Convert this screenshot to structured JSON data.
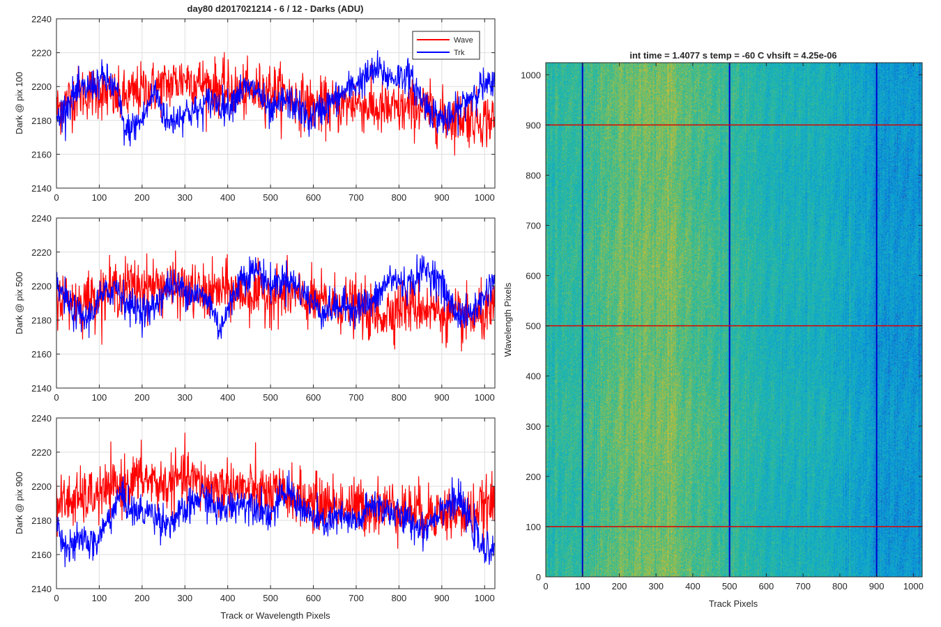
{
  "chart_data": [
    {
      "type": "line",
      "title": "day80 d2017021214 - 6 / 12 - Darks (ADU)",
      "xlabel": "",
      "ylabel": "Dark @ pix 100",
      "xlim": [
        0,
        1024
      ],
      "ylim": [
        2140,
        2240
      ],
      "xticks": [
        0,
        100,
        200,
        300,
        400,
        500,
        600,
        700,
        800,
        900,
        1000
      ],
      "yticks": [
        2140,
        2160,
        2180,
        2200,
        2220,
        2240
      ],
      "grid": true,
      "legend": {
        "placement": "top-right",
        "entries": [
          "Wave",
          "Trk"
        ]
      },
      "series": [
        {
          "name": "Wave",
          "color": "#ff0000",
          "n": 1024,
          "keypoints": [
            [
              0,
              2186
            ],
            [
              50,
              2196
            ],
            [
              100,
              2197
            ],
            [
              150,
              2192
            ],
            [
              200,
              2198
            ],
            [
              250,
              2200
            ],
            [
              300,
              2205
            ],
            [
              350,
              2201
            ],
            [
              400,
              2198
            ],
            [
              450,
              2196
            ],
            [
              500,
              2199
            ],
            [
              550,
              2193
            ],
            [
              600,
              2188
            ],
            [
              650,
              2188
            ],
            [
              700,
              2191
            ],
            [
              750,
              2186
            ],
            [
              800,
              2186
            ],
            [
              850,
              2188
            ],
            [
              900,
              2182
            ],
            [
              950,
              2182
            ],
            [
              1024,
              2180
            ]
          ],
          "noise": 8
        },
        {
          "name": "Trk",
          "color": "#0000ff",
          "n": 1024,
          "keypoints": [
            [
              0,
              2180
            ],
            [
              40,
              2195
            ],
            [
              80,
              2200
            ],
            [
              110,
              2205
            ],
            [
              140,
              2198
            ],
            [
              160,
              2173
            ],
            [
              200,
              2180
            ],
            [
              230,
              2198
            ],
            [
              260,
              2178
            ],
            [
              300,
              2185
            ],
            [
              330,
              2185
            ],
            [
              360,
              2192
            ],
            [
              400,
              2188
            ],
            [
              430,
              2198
            ],
            [
              470,
              2198
            ],
            [
              500,
              2183
            ],
            [
              530,
              2192
            ],
            [
              560,
              2189
            ],
            [
              590,
              2180
            ],
            [
              620,
              2187
            ],
            [
              650,
              2192
            ],
            [
              690,
              2200
            ],
            [
              720,
              2205
            ],
            [
              750,
              2210
            ],
            [
              780,
              2205
            ],
            [
              820,
              2207
            ],
            [
              860,
              2190
            ],
            [
              890,
              2182
            ],
            [
              920,
              2180
            ],
            [
              950,
              2190
            ],
            [
              990,
              2200
            ],
            [
              1024,
              2200
            ]
          ],
          "noise": 5
        }
      ]
    },
    {
      "type": "line",
      "title": "",
      "xlabel": "",
      "ylabel": "Dark @ pix 500",
      "xlim": [
        0,
        1024
      ],
      "ylim": [
        2140,
        2240
      ],
      "xticks": [
        0,
        100,
        200,
        300,
        400,
        500,
        600,
        700,
        800,
        900,
        1000
      ],
      "yticks": [
        2140,
        2160,
        2180,
        2200,
        2220,
        2240
      ],
      "grid": true,
      "series": [
        {
          "name": "Wave",
          "color": "#ff0000",
          "n": 1024,
          "keypoints": [
            [
              0,
              2195
            ],
            [
              50,
              2190
            ],
            [
              100,
              2195
            ],
            [
              150,
              2200
            ],
            [
              200,
              2200
            ],
            [
              250,
              2200
            ],
            [
              300,
              2198
            ],
            [
              350,
              2195
            ],
            [
              400,
              2198
            ],
            [
              450,
              2195
            ],
            [
              500,
              2195
            ],
            [
              550,
              2195
            ],
            [
              600,
              2190
            ],
            [
              650,
              2190
            ],
            [
              700,
              2188
            ],
            [
              750,
              2182
            ],
            [
              800,
              2188
            ],
            [
              850,
              2188
            ],
            [
              900,
              2185
            ],
            [
              950,
              2180
            ],
            [
              1024,
              2185
            ]
          ],
          "noise": 8
        },
        {
          "name": "Trk",
          "color": "#0000ff",
          "n": 1024,
          "keypoints": [
            [
              0,
              2200
            ],
            [
              40,
              2185
            ],
            [
              70,
              2180
            ],
            [
              100,
              2192
            ],
            [
              140,
              2200
            ],
            [
              170,
              2188
            ],
            [
              220,
              2185
            ],
            [
              260,
              2200
            ],
            [
              300,
              2198
            ],
            [
              330,
              2195
            ],
            [
              360,
              2190
            ],
            [
              380,
              2175
            ],
            [
              400,
              2185
            ],
            [
              430,
              2205
            ],
            [
              470,
              2210
            ],
            [
              500,
              2200
            ],
            [
              540,
              2205
            ],
            [
              580,
              2195
            ],
            [
              620,
              2185
            ],
            [
              660,
              2188
            ],
            [
              700,
              2188
            ],
            [
              740,
              2190
            ],
            [
              780,
              2205
            ],
            [
              820,
              2200
            ],
            [
              860,
              2210
            ],
            [
              890,
              2205
            ],
            [
              930,
              2185
            ],
            [
              960,
              2182
            ],
            [
              990,
              2190
            ],
            [
              1024,
              2205
            ]
          ],
          "noise": 5
        }
      ]
    },
    {
      "type": "line",
      "title": "",
      "xlabel": "Track or Wavelength Pixels",
      "ylabel": "Dark @ pix 900",
      "xlim": [
        0,
        1024
      ],
      "ylim": [
        2140,
        2240
      ],
      "xticks": [
        0,
        100,
        200,
        300,
        400,
        500,
        600,
        700,
        800,
        900,
        1000
      ],
      "yticks": [
        2140,
        2160,
        2180,
        2200,
        2220,
        2240
      ],
      "grid": true,
      "series": [
        {
          "name": "Wave",
          "color": "#ff0000",
          "n": 1024,
          "keypoints": [
            [
              0,
              2190
            ],
            [
              50,
              2192
            ],
            [
              100,
              2195
            ],
            [
              150,
              2200
            ],
            [
              200,
              2205
            ],
            [
              250,
              2200
            ],
            [
              300,
              2205
            ],
            [
              350,
              2200
            ],
            [
              400,
              2200
            ],
            [
              450,
              2198
            ],
            [
              500,
              2195
            ],
            [
              550,
              2195
            ],
            [
              600,
              2190
            ],
            [
              650,
              2190
            ],
            [
              700,
              2188
            ],
            [
              750,
              2188
            ],
            [
              800,
              2188
            ],
            [
              850,
              2185
            ],
            [
              900,
              2185
            ],
            [
              950,
              2182
            ],
            [
              1024,
              2190
            ]
          ],
          "noise": 8
        },
        {
          "name": "Trk",
          "color": "#0000ff",
          "n": 1024,
          "keypoints": [
            [
              0,
              2178
            ],
            [
              30,
              2162
            ],
            [
              60,
              2170
            ],
            [
              90,
              2165
            ],
            [
              120,
              2180
            ],
            [
              150,
              2195
            ],
            [
              180,
              2185
            ],
            [
              220,
              2185
            ],
            [
              260,
              2178
            ],
            [
              300,
              2185
            ],
            [
              340,
              2195
            ],
            [
              380,
              2185
            ],
            [
              420,
              2190
            ],
            [
              460,
              2190
            ],
            [
              500,
              2183
            ],
            [
              540,
              2198
            ],
            [
              580,
              2185
            ],
            [
              620,
              2178
            ],
            [
              660,
              2182
            ],
            [
              700,
              2178
            ],
            [
              740,
              2190
            ],
            [
              780,
              2185
            ],
            [
              820,
              2180
            ],
            [
              860,
              2175
            ],
            [
              900,
              2188
            ],
            [
              940,
              2192
            ],
            [
              980,
              2172
            ],
            [
              1000,
              2160
            ],
            [
              1024,
              2168
            ]
          ],
          "noise": 5
        }
      ]
    },
    {
      "type": "heatmap",
      "title": "int time = 1.4077 s    temp = -60 C    vhsift = 4.25e-06",
      "xlabel": "Track Pixels",
      "ylabel": "Wavelength Pixels",
      "xlim": [
        0,
        1024
      ],
      "ylim": [
        0,
        1024
      ],
      "xticks": [
        0,
        100,
        200,
        300,
        400,
        500,
        600,
        700,
        800,
        900,
        1000
      ],
      "yticks": [
        0,
        100,
        200,
        300,
        400,
        500,
        600,
        700,
        800,
        900,
        1000
      ],
      "colormap": "parula",
      "column_profile": [
        [
          0,
          0.45
        ],
        [
          60,
          0.48
        ],
        [
          100,
          0.5
        ],
        [
          180,
          0.58
        ],
        [
          280,
          0.62
        ],
        [
          340,
          0.62
        ],
        [
          400,
          0.55
        ],
        [
          450,
          0.52
        ],
        [
          520,
          0.47
        ],
        [
          600,
          0.42
        ],
        [
          680,
          0.4
        ],
        [
          760,
          0.38
        ],
        [
          850,
          0.33
        ],
        [
          920,
          0.27
        ],
        [
          1000,
          0.27
        ],
        [
          1024,
          0.28
        ]
      ],
      "marker_columns": [
        100,
        500,
        900
      ],
      "marker_column_color": "#0000cc",
      "marker_rows": [
        100,
        500,
        900
      ],
      "marker_row_color": "#dd0000"
    }
  ]
}
